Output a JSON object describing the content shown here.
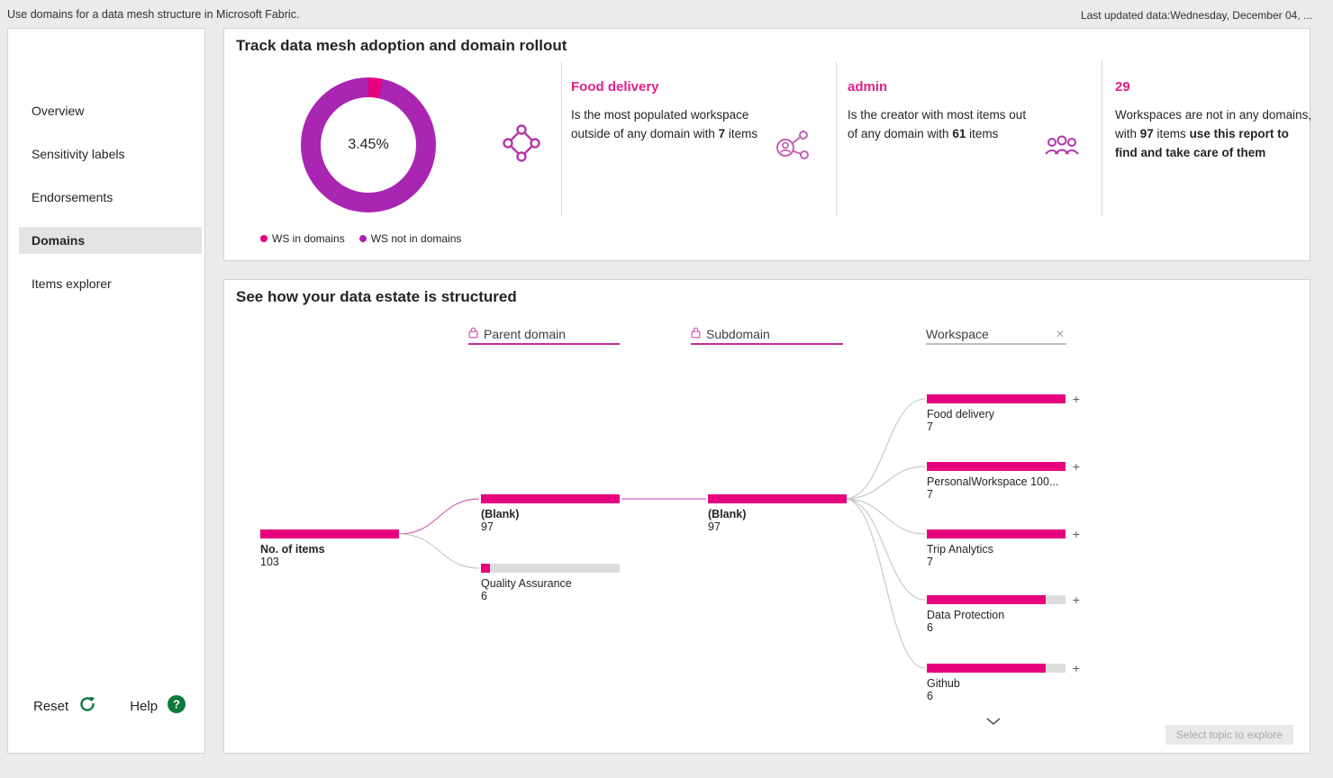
{
  "colors": {
    "magenta": "#E6007E",
    "purple": "#A826B1",
    "green": "#0C7A3E",
    "bar_track": "#DCDCDC"
  },
  "topbar": {
    "title": "Use domains for a data mesh structure in Microsoft Fabric.",
    "last_updated": "Last updated data:Wednesday, December 04, ..."
  },
  "sidebar": {
    "items": [
      {
        "label": "Overview",
        "active": false
      },
      {
        "label": "Sensitivity labels",
        "active": false
      },
      {
        "label": "Endorsements",
        "active": false
      },
      {
        "label": "Domains",
        "active": true
      },
      {
        "label": "Items explorer",
        "active": false
      }
    ],
    "reset_label": "Reset",
    "help_label": "Help"
  },
  "adoption": {
    "title": "Track data mesh adoption and domain rollout",
    "donut": {
      "center_label": "3.45%",
      "in_pct": 3.45,
      "out_pct": 96.55
    },
    "legend": [
      {
        "label": "WS in domains",
        "color": "#E6007E"
      },
      {
        "label": "WS not in domains",
        "color": "#A826B1"
      }
    ],
    "kpis": [
      {
        "icon": "domain-mesh-icon",
        "title": "Food delivery",
        "segments": [
          {
            "text": "Is the most populated workspace outside of any domain with ",
            "bold": false
          },
          {
            "text": "7",
            "bold": true
          },
          {
            "text": " items",
            "bold": false
          }
        ]
      },
      {
        "icon": "share-person-icon",
        "title": "admin",
        "segments": [
          {
            "text": "Is the creator with most items out of any domain with ",
            "bold": false
          },
          {
            "text": "61",
            "bold": true
          },
          {
            "text": " items",
            "bold": false
          }
        ]
      },
      {
        "icon": "people-icon",
        "title": "29",
        "segments": [
          {
            "text": "Workspaces are not in any domains, with ",
            "bold": false
          },
          {
            "text": "97",
            "bold": true
          },
          {
            "text": " items ",
            "bold": false
          },
          {
            "text": "use this report to find and take care of them",
            "bold": true
          }
        ]
      }
    ]
  },
  "tree": {
    "title": "See how your data estate is structured",
    "columns": [
      {
        "label": "Parent domain",
        "lock": true,
        "closable": false
      },
      {
        "label": "Subdomain",
        "lock": true,
        "closable": false
      },
      {
        "label": "Workspace",
        "lock": false,
        "closable": true
      }
    ],
    "close_glyph": "✕",
    "plus_glyph": "+",
    "root": {
      "label": "No. of items",
      "value": "103",
      "fill": 1
    },
    "level1": [
      {
        "label": "(Blank)",
        "value": "97",
        "fill": 1
      },
      {
        "label": "Quality Assurance",
        "value": "6",
        "fill": 0.065
      }
    ],
    "level2": [
      {
        "label": "(Blank)",
        "value": "97",
        "fill": 1
      }
    ],
    "level3": [
      {
        "label": "Food delivery",
        "value": "7",
        "fill": 1
      },
      {
        "label": "PersonalWorkspace 100...",
        "value": "7",
        "fill": 1
      },
      {
        "label": "Trip Analytics",
        "value": "7",
        "fill": 1
      },
      {
        "label": "Data Protection",
        "value": "6",
        "fill": 0.857
      },
      {
        "label": "Github",
        "value": "6",
        "fill": 0.857
      }
    ],
    "explore_placeholder": "Select topic to explore"
  }
}
